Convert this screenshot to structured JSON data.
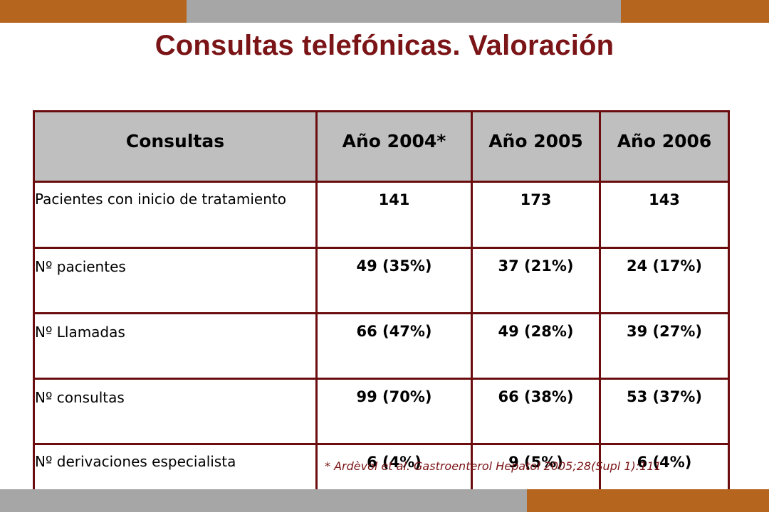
{
  "colors": {
    "accent_orange": "#b5651d",
    "band_gray": "#a6a6a6",
    "title": "#7a1416",
    "border": "#6b0d0f",
    "header_bg": "#bfbfbf"
  },
  "title": "Consultas telefónicas. Valoración",
  "table": {
    "headers": [
      "Consultas",
      "Año 2004*",
      "Año 2005",
      "Año 2006"
    ],
    "rows": [
      {
        "label": "Pacientes con inicio de tratamiento",
        "values": [
          "141",
          "173",
          "143"
        ]
      },
      {
        "label": "Nº pacientes",
        "values": [
          "49 (35%)",
          "37 (21%)",
          "24 (17%)"
        ]
      },
      {
        "label": "Nº Llamadas",
        "values": [
          "66 (47%)",
          "49 (28%)",
          "39 (27%)"
        ]
      },
      {
        "label": "Nº consultas",
        "values": [
          "99 (70%)",
          "66 (38%)",
          "53 (37%)"
        ]
      },
      {
        "label": "Nº derivaciones especialista",
        "values": [
          "6 (4%)",
          "9 (5%)",
          "6 (4%)"
        ]
      }
    ]
  },
  "footnote": "* Ardèvol et al. Gastroenterol Hepatol 2005;28(Supl 1):111"
}
